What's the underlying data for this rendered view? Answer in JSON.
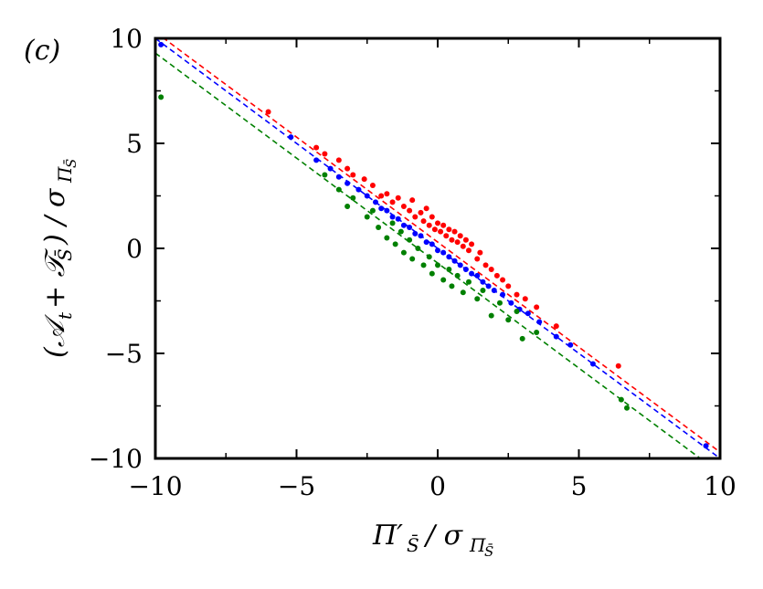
{
  "panel_label": "(c)",
  "chart_data": {
    "type": "scatter",
    "xlabel": "Π′_S̄ / σ_Π_S̄",
    "ylabel": "(A_t + T_S̄) / σ_Π_S̄",
    "xlim": [
      -10,
      10
    ],
    "ylim": [
      -10,
      10
    ],
    "xticks": [
      -10,
      -5,
      0,
      5,
      10
    ],
    "yticks": [
      -10,
      -5,
      0,
      5,
      10
    ],
    "xtick_labels": [
      "−10",
      "−5",
      "0",
      "5",
      "10"
    ],
    "ytick_labels": [
      "−10",
      "−5",
      "0",
      "5",
      "10"
    ],
    "grid": false,
    "series": [
      {
        "color": "#ff0000",
        "fit_line": {
          "slope": -1.0,
          "intercept": 0.3
        },
        "points": [
          [
            -6.0,
            6.5
          ],
          [
            -4.3,
            4.8
          ],
          [
            -4.0,
            4.5
          ],
          [
            -3.5,
            4.2
          ],
          [
            -3.2,
            3.8
          ],
          [
            -3.0,
            3.5
          ],
          [
            -2.6,
            3.3
          ],
          [
            -2.3,
            3.0
          ],
          [
            -2.0,
            2.5
          ],
          [
            -1.8,
            2.6
          ],
          [
            -1.6,
            2.2
          ],
          [
            -1.4,
            2.4
          ],
          [
            -1.2,
            2.0
          ],
          [
            -1.0,
            1.8
          ],
          [
            -0.9,
            2.3
          ],
          [
            -0.8,
            1.5
          ],
          [
            -0.6,
            1.7
          ],
          [
            -0.5,
            1.3
          ],
          [
            -0.4,
            1.9
          ],
          [
            -0.3,
            1.1
          ],
          [
            -0.2,
            1.5
          ],
          [
            -0.1,
            0.9
          ],
          [
            0.0,
            1.2
          ],
          [
            0.1,
            0.8
          ],
          [
            0.2,
            1.1
          ],
          [
            0.3,
            0.6
          ],
          [
            0.4,
            0.9
          ],
          [
            0.5,
            0.4
          ],
          [
            0.6,
            0.8
          ],
          [
            0.7,
            0.3
          ],
          [
            0.8,
            0.6
          ],
          [
            0.9,
            0.1
          ],
          [
            1.0,
            0.4
          ],
          [
            1.1,
            -0.1
          ],
          [
            1.2,
            0.2
          ],
          [
            1.4,
            -0.5
          ],
          [
            1.5,
            -0.2
          ],
          [
            1.7,
            -0.8
          ],
          [
            1.9,
            -1.0
          ],
          [
            2.1,
            -1.3
          ],
          [
            2.3,
            -1.5
          ],
          [
            2.5,
            -1.8
          ],
          [
            2.8,
            -2.2
          ],
          [
            3.1,
            -2.4
          ],
          [
            3.5,
            -2.8
          ],
          [
            4.2,
            -3.7
          ],
          [
            6.4,
            -5.6
          ]
        ]
      },
      {
        "color": "#0000ff",
        "fit_line": {
          "slope": -1.0,
          "intercept": 0.0
        },
        "points": [
          [
            -9.8,
            9.7
          ],
          [
            -5.2,
            5.3
          ],
          [
            -4.3,
            4.2
          ],
          [
            -3.8,
            3.8
          ],
          [
            -3.5,
            3.4
          ],
          [
            -3.2,
            3.1
          ],
          [
            -2.8,
            2.8
          ],
          [
            -2.5,
            2.5
          ],
          [
            -2.2,
            2.2
          ],
          [
            -2.0,
            1.9
          ],
          [
            -1.8,
            1.8
          ],
          [
            -1.6,
            1.5
          ],
          [
            -1.4,
            1.4
          ],
          [
            -1.2,
            1.1
          ],
          [
            -1.0,
            1.0
          ],
          [
            -0.8,
            0.7
          ],
          [
            -0.6,
            0.6
          ],
          [
            -0.4,
            0.3
          ],
          [
            -0.2,
            0.2
          ],
          [
            0.0,
            -0.1
          ],
          [
            0.2,
            -0.2
          ],
          [
            0.4,
            -0.4
          ],
          [
            0.6,
            -0.6
          ],
          [
            0.8,
            -0.8
          ],
          [
            1.0,
            -1.0
          ],
          [
            1.2,
            -1.2
          ],
          [
            1.4,
            -1.3
          ],
          [
            1.6,
            -1.6
          ],
          [
            1.8,
            -1.8
          ],
          [
            2.0,
            -2.0
          ],
          [
            2.3,
            -2.2
          ],
          [
            2.6,
            -2.6
          ],
          [
            2.9,
            -2.9
          ],
          [
            3.2,
            -3.1
          ],
          [
            3.6,
            -3.5
          ],
          [
            4.2,
            -4.2
          ],
          [
            4.7,
            -4.6
          ],
          [
            5.5,
            -5.5
          ],
          [
            9.5,
            -9.4
          ]
        ]
      },
      {
        "color": "#008000",
        "fit_line": {
          "slope": -1.0,
          "intercept": -0.7
        },
        "points": [
          [
            -9.8,
            7.2
          ],
          [
            -4.0,
            3.5
          ],
          [
            -3.5,
            2.8
          ],
          [
            -3.2,
            2.0
          ],
          [
            -3.0,
            2.4
          ],
          [
            -2.5,
            1.5
          ],
          [
            -2.3,
            1.8
          ],
          [
            -2.1,
            1.0
          ],
          [
            -1.8,
            0.5
          ],
          [
            -1.6,
            1.2
          ],
          [
            -1.5,
            0.2
          ],
          [
            -1.3,
            0.8
          ],
          [
            -1.2,
            -0.2
          ],
          [
            -1.0,
            0.4
          ],
          [
            -0.9,
            -0.5
          ],
          [
            -0.7,
            0.0
          ],
          [
            -0.5,
            -0.8
          ],
          [
            -0.3,
            -0.4
          ],
          [
            -0.2,
            -1.2
          ],
          [
            0.0,
            -0.8
          ],
          [
            0.2,
            -1.5
          ],
          [
            0.4,
            -1.0
          ],
          [
            0.5,
            -1.8
          ],
          [
            0.7,
            -1.3
          ],
          [
            0.9,
            -2.1
          ],
          [
            1.1,
            -1.6
          ],
          [
            1.4,
            -2.4
          ],
          [
            1.6,
            -2.0
          ],
          [
            1.9,
            -3.2
          ],
          [
            2.2,
            -2.6
          ],
          [
            2.5,
            -3.4
          ],
          [
            2.8,
            -3.0
          ],
          [
            3.0,
            -4.3
          ],
          [
            3.5,
            -4.0
          ],
          [
            6.5,
            -7.2
          ],
          [
            6.7,
            -7.6
          ]
        ]
      }
    ]
  }
}
